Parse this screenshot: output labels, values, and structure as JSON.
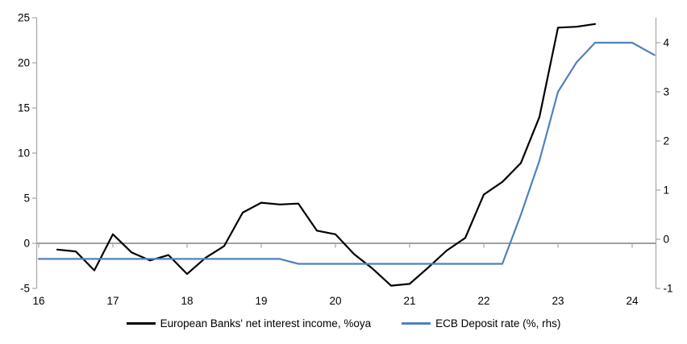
{
  "chart_data": {
    "type": "line",
    "title": "",
    "legend_position": "bottom-center",
    "grid": "zero-line-only",
    "axis_color": "#a6a6a6",
    "zero_line_color": "#a0a0a0",
    "x_axis": {
      "ticks": [
        16,
        17,
        18,
        19,
        20,
        21,
        22,
        23,
        24
      ],
      "range": [
        16,
        24.32
      ]
    },
    "y_axis_left": {
      "ticks": [
        25,
        20,
        15,
        10,
        5,
        0,
        -5
      ],
      "range": [
        -5,
        25
      ]
    },
    "y_axis_right": {
      "ticks": [
        4,
        3,
        2,
        1,
        0,
        -1
      ],
      "range": [
        -1,
        4
      ]
    },
    "series": [
      {
        "name": "European Banks' net interest income, %oya",
        "axis": "left",
        "color": "#000000",
        "points": [
          [
            16.25,
            -0.7
          ],
          [
            16.5,
            -0.9
          ],
          [
            16.75,
            -3.0
          ],
          [
            17.0,
            1.0
          ],
          [
            17.25,
            -1.0
          ],
          [
            17.5,
            -1.9
          ],
          [
            17.75,
            -1.3
          ],
          [
            18.0,
            -3.4
          ],
          [
            18.25,
            -1.6
          ],
          [
            18.5,
            -0.3
          ],
          [
            18.75,
            3.4
          ],
          [
            19.0,
            4.5
          ],
          [
            19.25,
            4.3
          ],
          [
            19.5,
            4.4
          ],
          [
            19.75,
            1.4
          ],
          [
            20.0,
            1.0
          ],
          [
            20.25,
            -1.2
          ],
          [
            20.5,
            -2.8
          ],
          [
            20.75,
            -4.7
          ],
          [
            21.0,
            -4.5
          ],
          [
            21.25,
            -2.7
          ],
          [
            21.5,
            -0.8
          ],
          [
            21.75,
            0.6
          ],
          [
            22.0,
            5.4
          ],
          [
            22.25,
            6.8
          ],
          [
            22.5,
            8.9
          ],
          [
            22.75,
            14.0
          ],
          [
            23.0,
            23.9
          ],
          [
            23.25,
            24.0
          ],
          [
            23.5,
            24.3
          ]
        ]
      },
      {
        "name": "ECB Deposit rate (%, rhs)",
        "axis": "right",
        "color": "#4f81bd",
        "points": [
          [
            16.0,
            -0.4
          ],
          [
            16.25,
            -0.4
          ],
          [
            16.5,
            -0.4
          ],
          [
            16.75,
            -0.4
          ],
          [
            17.0,
            -0.4
          ],
          [
            17.25,
            -0.4
          ],
          [
            17.5,
            -0.4
          ],
          [
            17.75,
            -0.4
          ],
          [
            18.0,
            -0.4
          ],
          [
            18.25,
            -0.4
          ],
          [
            18.5,
            -0.4
          ],
          [
            18.75,
            -0.4
          ],
          [
            19.0,
            -0.4
          ],
          [
            19.25,
            -0.4
          ],
          [
            19.5,
            -0.5
          ],
          [
            19.75,
            -0.5
          ],
          [
            20.0,
            -0.5
          ],
          [
            20.25,
            -0.5
          ],
          [
            20.5,
            -0.5
          ],
          [
            20.75,
            -0.5
          ],
          [
            21.0,
            -0.5
          ],
          [
            21.25,
            -0.5
          ],
          [
            21.5,
            -0.5
          ],
          [
            21.75,
            -0.5
          ],
          [
            22.0,
            -0.5
          ],
          [
            22.25,
            -0.5
          ],
          [
            22.5,
            0.5
          ],
          [
            22.75,
            1.6
          ],
          [
            23.0,
            3.0
          ],
          [
            23.25,
            3.6
          ],
          [
            23.5,
            4.0
          ],
          [
            23.75,
            4.0
          ],
          [
            24.0,
            4.0
          ],
          [
            24.3,
            3.75
          ]
        ]
      }
    ]
  }
}
